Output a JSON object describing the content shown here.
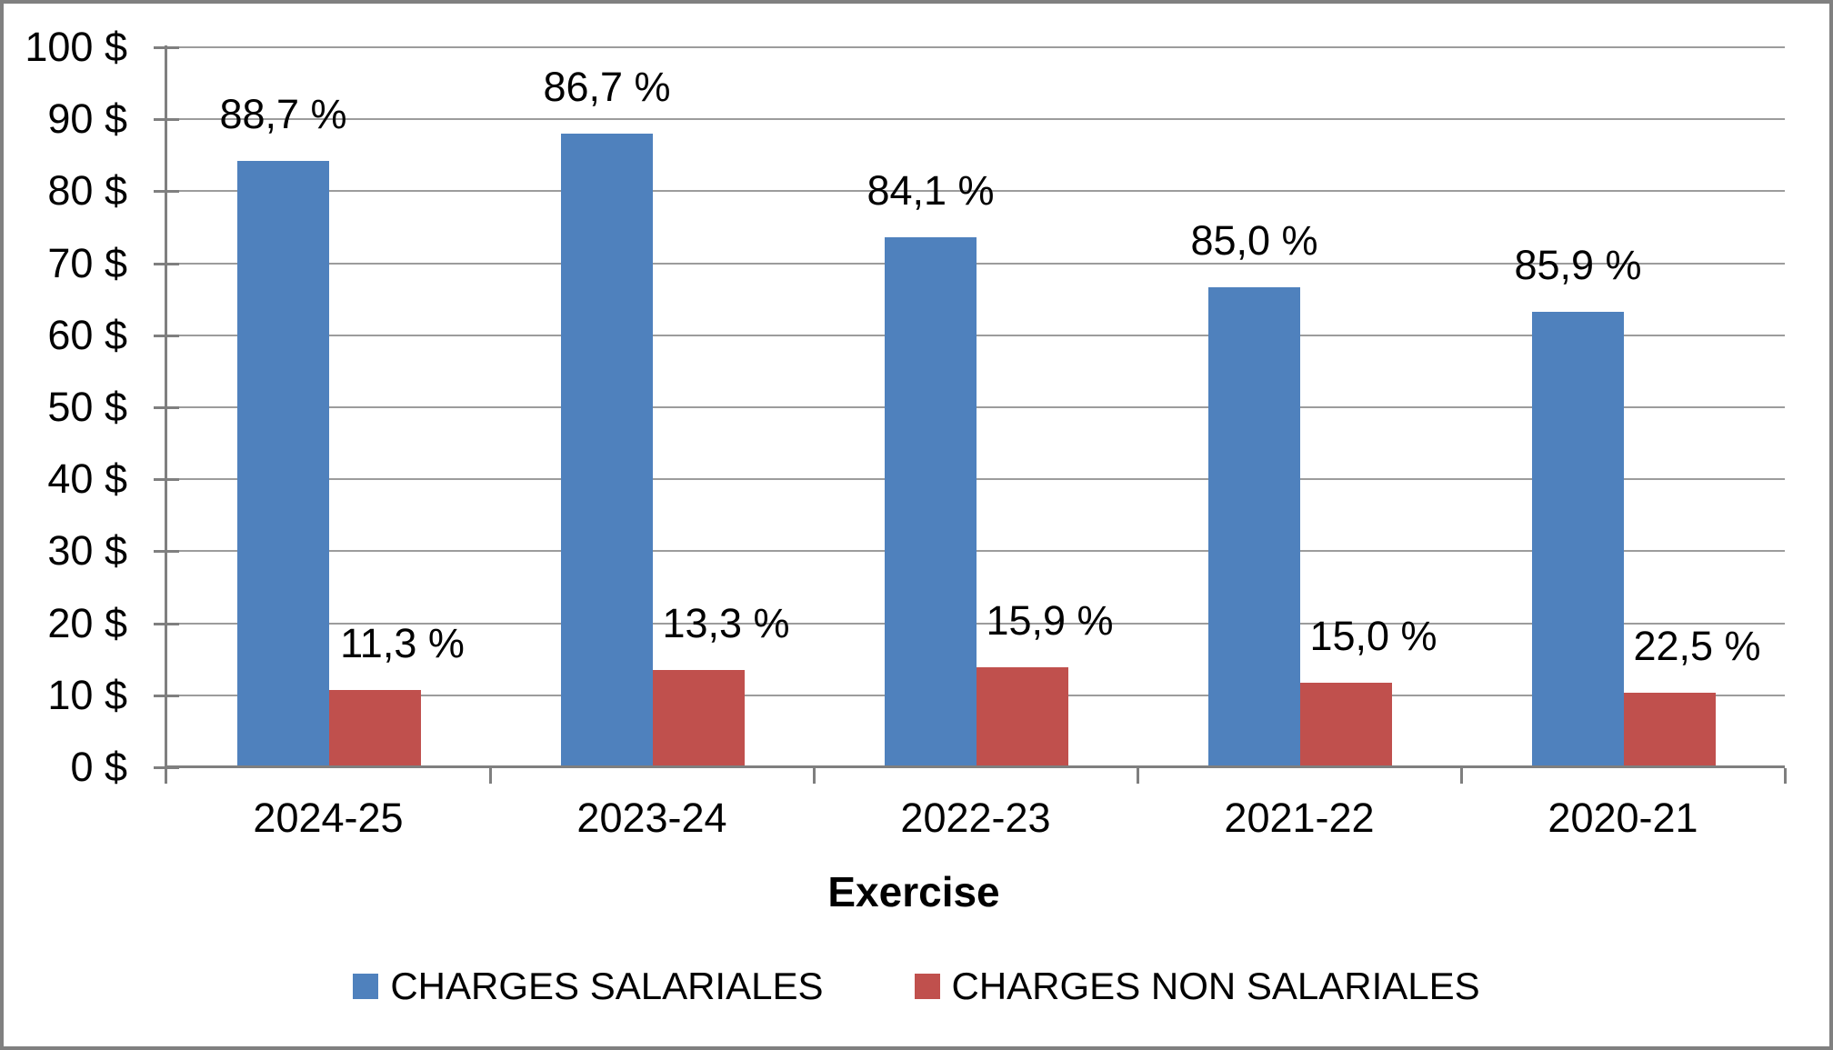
{
  "chart_data": {
    "type": "bar",
    "title": "",
    "xlabel": "Exercise",
    "ylabel": "",
    "ylim": [
      0,
      100
    ],
    "y_tick_step": 10,
    "y_tick_labels": [
      "0 $",
      "10 $",
      "20 $",
      "30 $",
      "40 $",
      "50 $",
      "60 $",
      "70 $",
      "80 $",
      "90 $",
      "100 $"
    ],
    "grid": true,
    "legend_position": "bottom",
    "categories": [
      "2024-25",
      "2023-24",
      "2022-23",
      "2021-22",
      "2020-21"
    ],
    "series": [
      {
        "name": "CHARGES SALARIALES",
        "color": "#4F81BD",
        "values": [
          84.2,
          88.0,
          73.6,
          66.7,
          63.2
        ],
        "labels": [
          "88,7 %",
          "86,7 %",
          "84,1 %",
          "85,0 %",
          "85,9 %"
        ]
      },
      {
        "name": "CHARGES NON SALARIALES",
        "color": "#C0504D",
        "values": [
          10.7,
          13.5,
          13.9,
          11.8,
          10.3
        ],
        "labels": [
          "11,3 %",
          "13,3 %",
          "15,9 %",
          "15,0 %",
          "22,5 %"
        ]
      }
    ]
  },
  "styles": {
    "background": "#FFFFFF",
    "text_color": "#000000",
    "gridline_color": "#9C9C9C",
    "axis_color": "#7F7F7F",
    "border_color": "#808080"
  }
}
